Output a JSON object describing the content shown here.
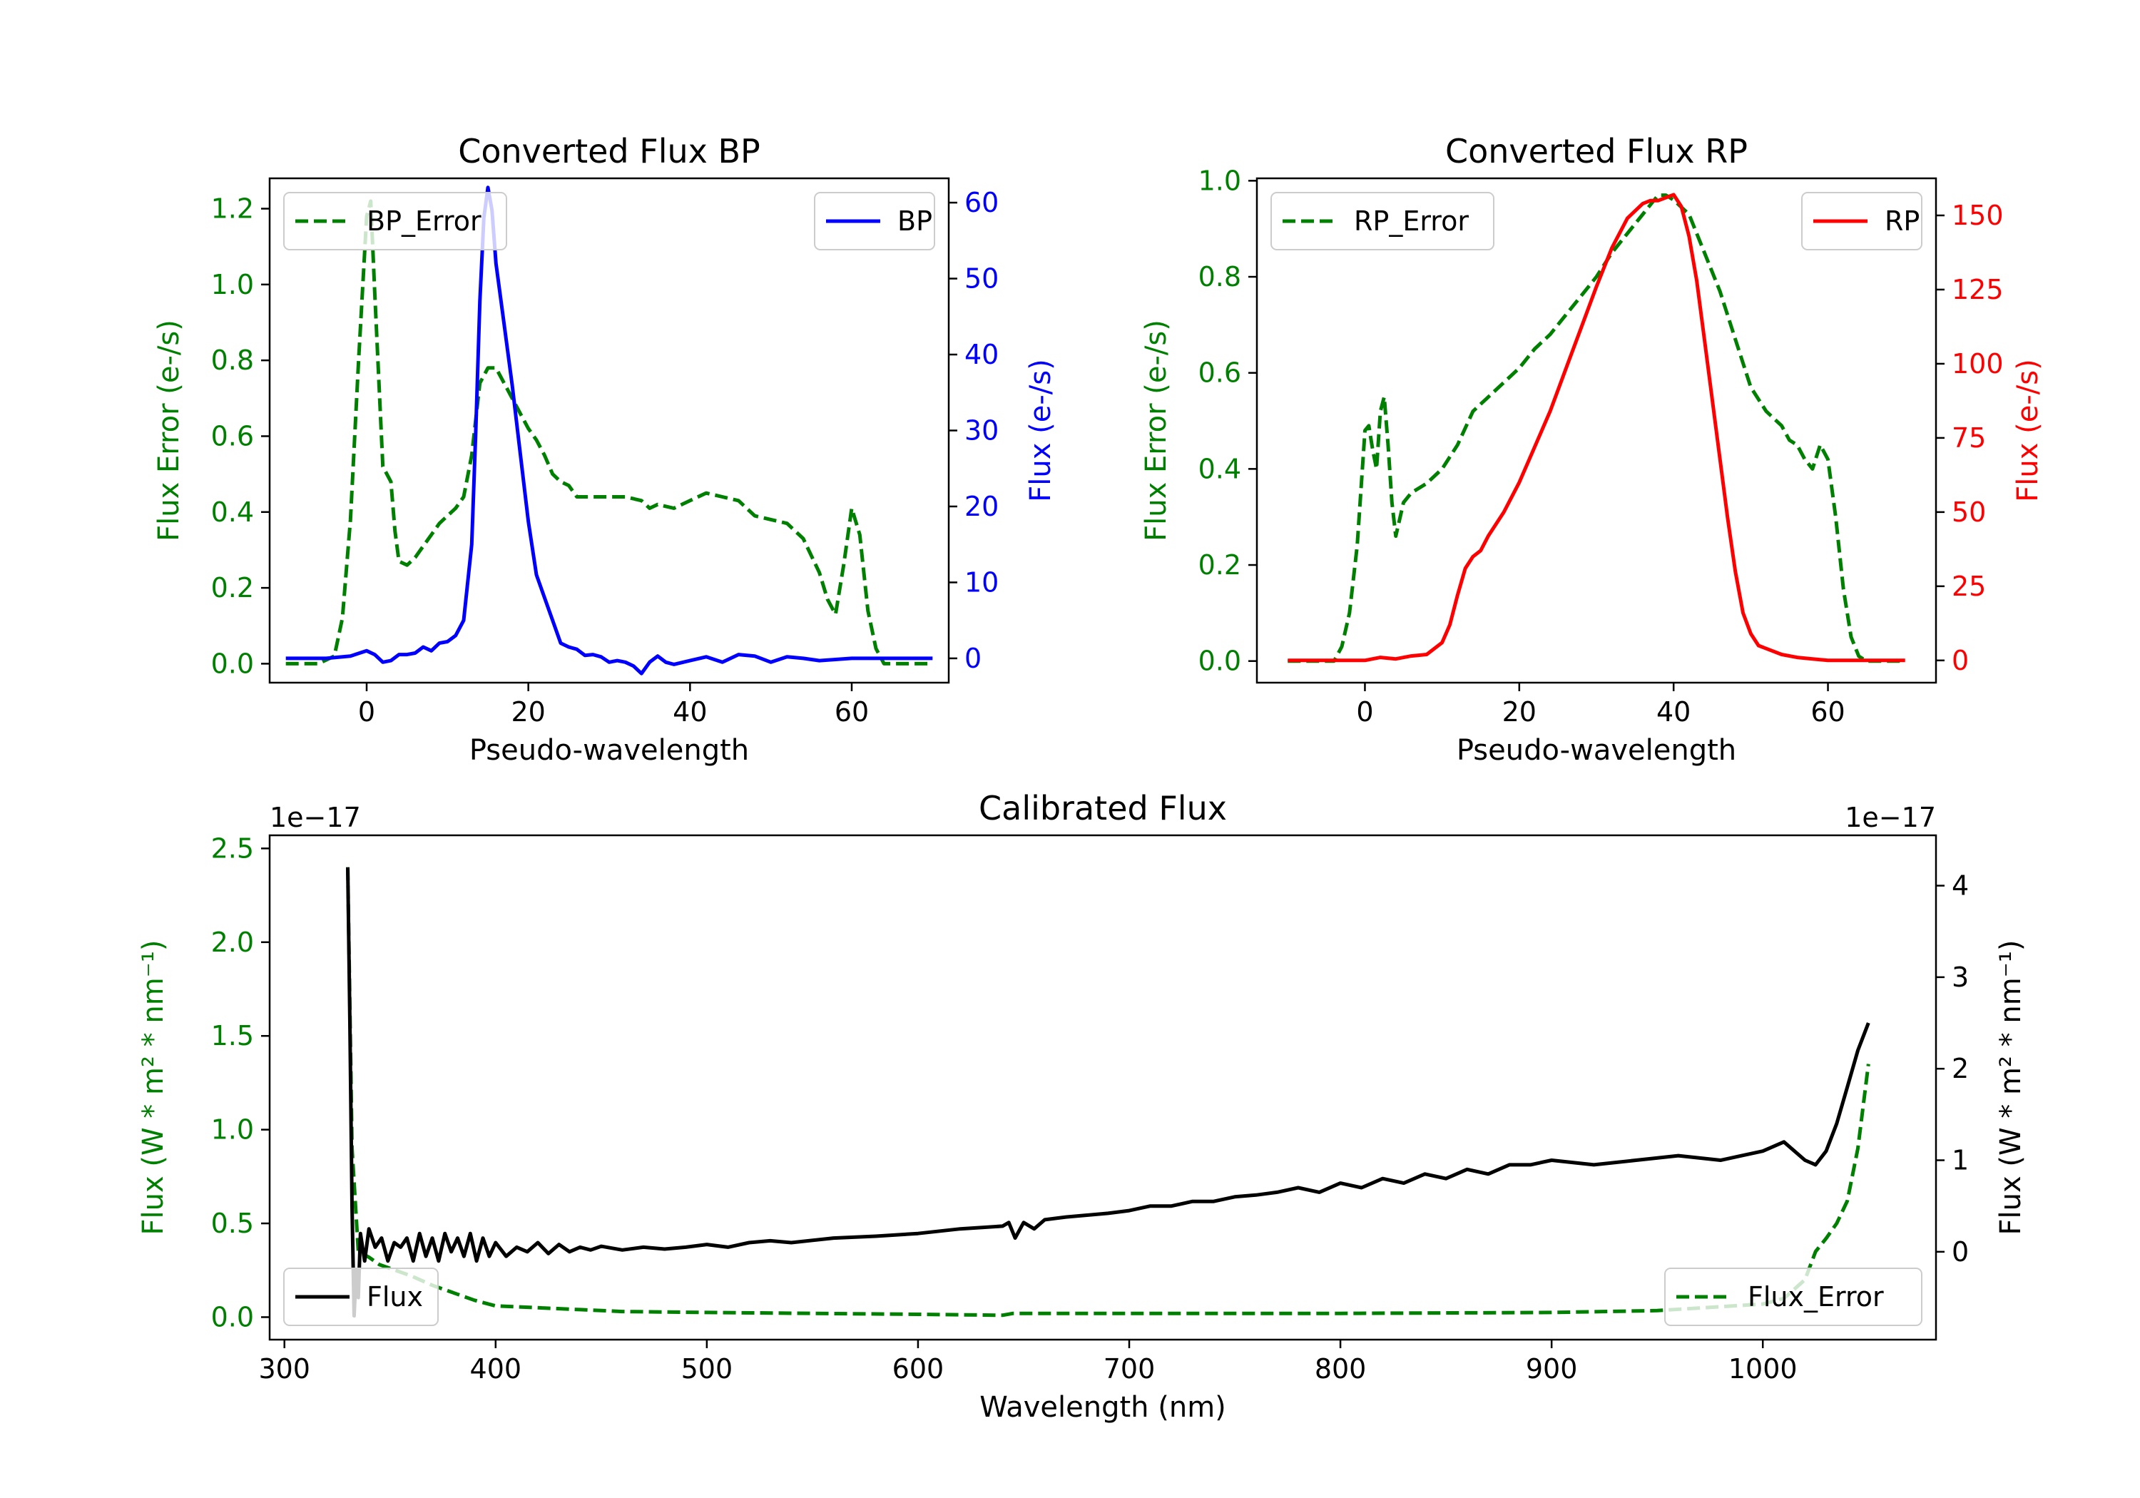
{
  "chart_data": [
    {
      "id": "bp",
      "type": "line",
      "title": "Converted Flux BP",
      "xlabel": "Pseudo-wavelength",
      "xlim": [
        -12,
        72
      ],
      "xticks": [
        0,
        20,
        40,
        60
      ],
      "left_axis": {
        "label": "Flux Error (e-/s)",
        "color": "#008000",
        "lim": [
          -0.05,
          1.28
        ],
        "ticks": [
          0.0,
          0.2,
          0.4,
          0.6,
          0.8,
          1.0,
          1.2
        ],
        "tick_labels": [
          "0.0",
          "0.2",
          "0.4",
          "0.6",
          "0.8",
          "1.0",
          "1.2"
        ]
      },
      "right_axis": {
        "label": "Flux (e-/s)",
        "color": "#0000ff",
        "lim": [
          -3.2,
          63.2
        ],
        "ticks": [
          0,
          10,
          20,
          30,
          40,
          50,
          60
        ],
        "tick_labels": [
          "0",
          "10",
          "20",
          "30",
          "40",
          "50",
          "60"
        ]
      },
      "series": [
        {
          "name": "BP_Error",
          "axis": "left",
          "color": "#008000",
          "style": "dashed",
          "legend": "upper-left",
          "x": [
            -10,
            -6,
            -4,
            -3,
            -2,
            -1,
            0,
            0.5,
            1,
            2,
            3,
            3.5,
            4,
            5,
            6,
            7,
            8,
            9,
            10,
            11,
            12,
            13,
            14,
            15,
            16,
            17,
            18,
            19,
            20,
            21,
            22,
            23,
            24,
            25,
            26,
            27,
            28,
            30,
            32,
            34,
            35,
            36,
            38,
            40,
            42,
            44,
            46,
            48,
            50,
            52,
            54,
            56,
            57,
            58,
            59,
            60,
            61,
            62,
            63,
            64,
            70
          ],
          "values": [
            0.0,
            0.0,
            0.02,
            0.12,
            0.38,
            0.8,
            1.18,
            1.22,
            0.98,
            0.52,
            0.48,
            0.35,
            0.27,
            0.26,
            0.28,
            0.31,
            0.34,
            0.37,
            0.39,
            0.41,
            0.44,
            0.55,
            0.74,
            0.78,
            0.78,
            0.74,
            0.7,
            0.66,
            0.62,
            0.59,
            0.55,
            0.5,
            0.48,
            0.47,
            0.44,
            0.44,
            0.44,
            0.44,
            0.44,
            0.43,
            0.41,
            0.42,
            0.41,
            0.43,
            0.45,
            0.44,
            0.43,
            0.39,
            0.38,
            0.37,
            0.33,
            0.24,
            0.17,
            0.13,
            0.26,
            0.41,
            0.34,
            0.14,
            0.04,
            0.0,
            0.0
          ]
        },
        {
          "name": "BP",
          "axis": "right",
          "color": "#0000ff",
          "style": "solid",
          "legend": "upper-right",
          "x": [
            -10,
            -5,
            -2,
            0,
            1,
            2,
            3,
            4,
            5,
            6,
            7,
            8,
            9,
            10,
            11,
            12,
            13,
            13.5,
            14,
            14.5,
            15,
            15.5,
            16,
            17,
            18,
            19,
            20,
            21,
            22,
            23,
            24,
            25,
            26,
            27,
            28,
            29,
            30,
            31,
            32,
            33,
            34,
            35,
            36,
            37,
            38,
            40,
            42,
            44,
            46,
            48,
            50,
            52,
            54,
            56,
            60,
            65,
            70
          ],
          "values": [
            0,
            0,
            0.3,
            1,
            0.5,
            -0.5,
            -0.3,
            0.5,
            0.5,
            0.7,
            1.5,
            1,
            2,
            2.2,
            3,
            5,
            15,
            30,
            47,
            58,
            62,
            59,
            52,
            44,
            36,
            27,
            18,
            11,
            8,
            5,
            2,
            1.5,
            1.2,
            0.4,
            0.5,
            0.2,
            -0.5,
            -0.3,
            -0.5,
            -1,
            -2,
            -0.5,
            0.3,
            -0.5,
            -0.8,
            -0.3,
            0.2,
            -0.5,
            0.5,
            0.3,
            -0.5,
            0.2,
            0,
            -0.3,
            0,
            0,
            0
          ]
        }
      ],
      "legends": [
        {
          "entries": [
            "BP_Error"
          ]
        },
        {
          "entries": [
            "BP"
          ]
        }
      ]
    },
    {
      "id": "rp",
      "type": "line",
      "title": "Converted Flux RP",
      "xlabel": "Pseudo-wavelength",
      "xlim": [
        -14,
        74
      ],
      "xticks": [
        0,
        20,
        40,
        60
      ],
      "left_axis": {
        "label": "Flux Error (e-/s)",
        "color": "#008000",
        "lim": [
          -0.045,
          1.005
        ],
        "ticks": [
          0.0,
          0.2,
          0.4,
          0.6,
          0.8,
          1.0
        ],
        "tick_labels": [
          "0.0",
          "0.2",
          "0.4",
          "0.6",
          "0.8",
          "1.0"
        ]
      },
      "right_axis": {
        "label": "Flux (e-/s)",
        "color": "#ff0000",
        "lim": [
          -7.5,
          162.5
        ],
        "ticks": [
          0,
          25,
          50,
          75,
          100,
          125,
          150
        ],
        "tick_labels": [
          "0",
          "25",
          "50",
          "75",
          "100",
          "125",
          "150"
        ]
      },
      "series": [
        {
          "name": "RP_Error",
          "axis": "left",
          "color": "#008000",
          "style": "dashed",
          "legend": "upper-left",
          "x": [
            -10,
            -5,
            -4,
            -3,
            -2,
            -1,
            0,
            0.5,
            1,
            1.5,
            2,
            2.5,
            3,
            3.5,
            4,
            5,
            6,
            8,
            10,
            12,
            14,
            16,
            18,
            20,
            22,
            24,
            26,
            28,
            30,
            32,
            34,
            36,
            37,
            38,
            39,
            40,
            42,
            44,
            46,
            48,
            50,
            52,
            54,
            55,
            56,
            57,
            58,
            59,
            60,
            61,
            62,
            63,
            64,
            65,
            70
          ],
          "values": [
            0.0,
            0.0,
            0.0,
            0.03,
            0.1,
            0.24,
            0.48,
            0.49,
            0.44,
            0.4,
            0.52,
            0.55,
            0.45,
            0.33,
            0.26,
            0.33,
            0.35,
            0.37,
            0.4,
            0.45,
            0.52,
            0.55,
            0.58,
            0.61,
            0.65,
            0.68,
            0.72,
            0.76,
            0.8,
            0.85,
            0.89,
            0.93,
            0.95,
            0.97,
            0.97,
            0.96,
            0.93,
            0.85,
            0.77,
            0.67,
            0.57,
            0.52,
            0.49,
            0.46,
            0.45,
            0.42,
            0.4,
            0.45,
            0.42,
            0.3,
            0.15,
            0.05,
            0.01,
            0.0,
            0.0
          ]
        },
        {
          "name": "RP",
          "axis": "right",
          "color": "#ff0000",
          "style": "solid",
          "legend": "upper-right",
          "x": [
            -10,
            -5,
            0,
            2,
            4,
            6,
            8,
            10,
            11,
            12,
            13,
            14,
            15,
            16,
            18,
            20,
            22,
            24,
            26,
            28,
            30,
            32,
            34,
            36,
            37,
            38,
            39,
            40,
            41,
            42,
            43,
            44,
            45,
            46,
            47,
            48,
            49,
            50,
            51,
            52,
            54,
            56,
            58,
            60,
            62,
            65,
            70
          ],
          "values": [
            0,
            0,
            0,
            1,
            0.5,
            1.5,
            2,
            6,
            12,
            22,
            31,
            35,
            37,
            42,
            50,
            60,
            72,
            84,
            98,
            112,
            126,
            139,
            149,
            154,
            155,
            155,
            156,
            157,
            153,
            143,
            128,
            108,
            88,
            68,
            48,
            30,
            16,
            9,
            5,
            4,
            2,
            1,
            0.5,
            0,
            0,
            0,
            0
          ]
        }
      ],
      "legends": [
        {
          "entries": [
            "RP_Error"
          ]
        },
        {
          "entries": [
            "RP"
          ]
        }
      ]
    },
    {
      "id": "calibrated",
      "type": "line",
      "title": "Calibrated Flux",
      "xlabel": "Wavelength (nm)",
      "xlim": [
        293,
        1082
      ],
      "xticks": [
        300,
        400,
        500,
        600,
        700,
        800,
        900,
        1000
      ],
      "left_axis": {
        "label": "Flux (W * m² * nm⁻¹)",
        "color": "#008000",
        "offset_text": "1e−17",
        "lim": [
          -0.12,
          2.57
        ],
        "ticks": [
          0.0,
          0.5,
          1.0,
          1.5,
          2.0,
          2.5
        ],
        "tick_labels": [
          "0.0",
          "0.5",
          "1.0",
          "1.5",
          "2.0",
          "2.5"
        ]
      },
      "right_axis": {
        "label": "Flux (W * m² * nm⁻¹)",
        "color": "#000000",
        "offset_text": "1e−17",
        "lim": [
          -0.96,
          4.55
        ],
        "ticks": [
          0,
          1,
          2,
          3,
          4
        ],
        "tick_labels": [
          "0",
          "1",
          "2",
          "3",
          "4"
        ]
      },
      "series": [
        {
          "name": "Flux_Error",
          "axis": "left",
          "color": "#008000",
          "style": "dashed",
          "legend": "lower-right",
          "x": [
            330,
            332,
            335,
            340,
            345,
            350,
            360,
            370,
            380,
            390,
            400,
            420,
            440,
            460,
            500,
            550,
            600,
            640,
            645,
            700,
            800,
            900,
            950,
            1000,
            1010,
            1020,
            1025,
            1030,
            1035,
            1040,
            1045,
            1050
          ],
          "values": [
            2.4,
            0.9,
            0.35,
            0.32,
            0.28,
            0.26,
            0.22,
            0.17,
            0.13,
            0.09,
            0.06,
            0.05,
            0.04,
            0.03,
            0.025,
            0.02,
            0.015,
            0.01,
            0.02,
            0.02,
            0.02,
            0.025,
            0.035,
            0.07,
            0.1,
            0.2,
            0.35,
            0.42,
            0.5,
            0.62,
            0.9,
            1.35
          ]
        },
        {
          "name": "Flux",
          "axis": "right",
          "color": "#000000",
          "style": "solid",
          "legend": "lower-left",
          "x": [
            330,
            331,
            332,
            333,
            334,
            335,
            336,
            338,
            340,
            343,
            346,
            349,
            352,
            355,
            358,
            361,
            364,
            367,
            370,
            373,
            376,
            379,
            382,
            385,
            388,
            391,
            394,
            397,
            400,
            405,
            410,
            415,
            420,
            425,
            430,
            435,
            440,
            445,
            450,
            460,
            470,
            480,
            490,
            500,
            510,
            520,
            530,
            540,
            560,
            580,
            600,
            620,
            640,
            643,
            646,
            650,
            655,
            660,
            670,
            680,
            690,
            700,
            710,
            720,
            730,
            740,
            750,
            760,
            770,
            780,
            790,
            800,
            810,
            820,
            830,
            840,
            850,
            860,
            870,
            880,
            890,
            900,
            920,
            940,
            960,
            980,
            990,
            1000,
            1010,
            1020,
            1025,
            1030,
            1035,
            1040,
            1045,
            1050
          ],
          "values": [
            4.2,
            2.5,
            0.5,
            -0.7,
            -0.2,
            -0.5,
            0.2,
            -0.1,
            0.25,
            0.05,
            0.15,
            -0.1,
            0.1,
            0.05,
            0.15,
            -0.1,
            0.2,
            -0.05,
            0.15,
            -0.1,
            0.2,
            0.0,
            0.15,
            -0.05,
            0.2,
            -0.1,
            0.15,
            -0.05,
            0.1,
            -0.05,
            0.05,
            0.0,
            0.1,
            -0.02,
            0.08,
            0.0,
            0.05,
            0.02,
            0.06,
            0.02,
            0.05,
            0.03,
            0.05,
            0.08,
            0.05,
            0.1,
            0.12,
            0.1,
            0.15,
            0.17,
            0.2,
            0.25,
            0.28,
            0.32,
            0.15,
            0.32,
            0.25,
            0.35,
            0.38,
            0.4,
            0.42,
            0.45,
            0.5,
            0.5,
            0.55,
            0.55,
            0.6,
            0.62,
            0.65,
            0.7,
            0.65,
            0.75,
            0.7,
            0.8,
            0.75,
            0.85,
            0.8,
            0.9,
            0.85,
            0.95,
            0.95,
            1.0,
            0.95,
            1.0,
            1.05,
            1.0,
            1.05,
            1.1,
            1.2,
            1.0,
            0.95,
            1.1,
            1.4,
            1.8,
            2.2,
            2.5
          ]
        }
      ],
      "legends": [
        {
          "entries": [
            "Flux"
          ]
        },
        {
          "entries": [
            "Flux_Error"
          ]
        }
      ]
    }
  ]
}
